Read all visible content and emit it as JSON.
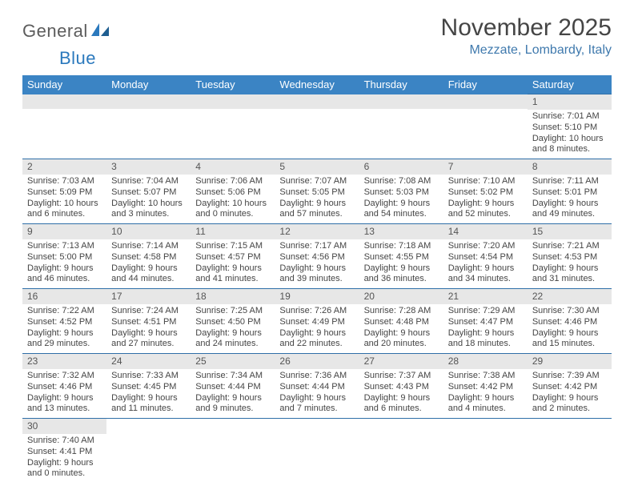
{
  "logo": {
    "text1": "General",
    "text2": "Blue"
  },
  "title": "November 2025",
  "location": "Mezzate, Lombardy, Italy",
  "colors": {
    "header_bg": "#3b84c4",
    "header_text": "#ffffff",
    "daynum_bg": "#e7e7e7",
    "rule": "#2f6fa8",
    "location_text": "#3f79ad",
    "body_text": "#454545"
  },
  "weekdays": [
    "Sunday",
    "Monday",
    "Tuesday",
    "Wednesday",
    "Thursday",
    "Friday",
    "Saturday"
  ],
  "weeks": [
    [
      null,
      null,
      null,
      null,
      null,
      null,
      {
        "n": "1",
        "sunrise": "Sunrise: 7:01 AM",
        "sunset": "Sunset: 5:10 PM",
        "day": "Daylight: 10 hours and 8 minutes."
      }
    ],
    [
      {
        "n": "2",
        "sunrise": "Sunrise: 7:03 AM",
        "sunset": "Sunset: 5:09 PM",
        "day": "Daylight: 10 hours and 6 minutes."
      },
      {
        "n": "3",
        "sunrise": "Sunrise: 7:04 AM",
        "sunset": "Sunset: 5:07 PM",
        "day": "Daylight: 10 hours and 3 minutes."
      },
      {
        "n": "4",
        "sunrise": "Sunrise: 7:06 AM",
        "sunset": "Sunset: 5:06 PM",
        "day": "Daylight: 10 hours and 0 minutes."
      },
      {
        "n": "5",
        "sunrise": "Sunrise: 7:07 AM",
        "sunset": "Sunset: 5:05 PM",
        "day": "Daylight: 9 hours and 57 minutes."
      },
      {
        "n": "6",
        "sunrise": "Sunrise: 7:08 AM",
        "sunset": "Sunset: 5:03 PM",
        "day": "Daylight: 9 hours and 54 minutes."
      },
      {
        "n": "7",
        "sunrise": "Sunrise: 7:10 AM",
        "sunset": "Sunset: 5:02 PM",
        "day": "Daylight: 9 hours and 52 minutes."
      },
      {
        "n": "8",
        "sunrise": "Sunrise: 7:11 AM",
        "sunset": "Sunset: 5:01 PM",
        "day": "Daylight: 9 hours and 49 minutes."
      }
    ],
    [
      {
        "n": "9",
        "sunrise": "Sunrise: 7:13 AM",
        "sunset": "Sunset: 5:00 PM",
        "day": "Daylight: 9 hours and 46 minutes."
      },
      {
        "n": "10",
        "sunrise": "Sunrise: 7:14 AM",
        "sunset": "Sunset: 4:58 PM",
        "day": "Daylight: 9 hours and 44 minutes."
      },
      {
        "n": "11",
        "sunrise": "Sunrise: 7:15 AM",
        "sunset": "Sunset: 4:57 PM",
        "day": "Daylight: 9 hours and 41 minutes."
      },
      {
        "n": "12",
        "sunrise": "Sunrise: 7:17 AM",
        "sunset": "Sunset: 4:56 PM",
        "day": "Daylight: 9 hours and 39 minutes."
      },
      {
        "n": "13",
        "sunrise": "Sunrise: 7:18 AM",
        "sunset": "Sunset: 4:55 PM",
        "day": "Daylight: 9 hours and 36 minutes."
      },
      {
        "n": "14",
        "sunrise": "Sunrise: 7:20 AM",
        "sunset": "Sunset: 4:54 PM",
        "day": "Daylight: 9 hours and 34 minutes."
      },
      {
        "n": "15",
        "sunrise": "Sunrise: 7:21 AM",
        "sunset": "Sunset: 4:53 PM",
        "day": "Daylight: 9 hours and 31 minutes."
      }
    ],
    [
      {
        "n": "16",
        "sunrise": "Sunrise: 7:22 AM",
        "sunset": "Sunset: 4:52 PM",
        "day": "Daylight: 9 hours and 29 minutes."
      },
      {
        "n": "17",
        "sunrise": "Sunrise: 7:24 AM",
        "sunset": "Sunset: 4:51 PM",
        "day": "Daylight: 9 hours and 27 minutes."
      },
      {
        "n": "18",
        "sunrise": "Sunrise: 7:25 AM",
        "sunset": "Sunset: 4:50 PM",
        "day": "Daylight: 9 hours and 24 minutes."
      },
      {
        "n": "19",
        "sunrise": "Sunrise: 7:26 AM",
        "sunset": "Sunset: 4:49 PM",
        "day": "Daylight: 9 hours and 22 minutes."
      },
      {
        "n": "20",
        "sunrise": "Sunrise: 7:28 AM",
        "sunset": "Sunset: 4:48 PM",
        "day": "Daylight: 9 hours and 20 minutes."
      },
      {
        "n": "21",
        "sunrise": "Sunrise: 7:29 AM",
        "sunset": "Sunset: 4:47 PM",
        "day": "Daylight: 9 hours and 18 minutes."
      },
      {
        "n": "22",
        "sunrise": "Sunrise: 7:30 AM",
        "sunset": "Sunset: 4:46 PM",
        "day": "Daylight: 9 hours and 15 minutes."
      }
    ],
    [
      {
        "n": "23",
        "sunrise": "Sunrise: 7:32 AM",
        "sunset": "Sunset: 4:46 PM",
        "day": "Daylight: 9 hours and 13 minutes."
      },
      {
        "n": "24",
        "sunrise": "Sunrise: 7:33 AM",
        "sunset": "Sunset: 4:45 PM",
        "day": "Daylight: 9 hours and 11 minutes."
      },
      {
        "n": "25",
        "sunrise": "Sunrise: 7:34 AM",
        "sunset": "Sunset: 4:44 PM",
        "day": "Daylight: 9 hours and 9 minutes."
      },
      {
        "n": "26",
        "sunrise": "Sunrise: 7:36 AM",
        "sunset": "Sunset: 4:44 PM",
        "day": "Daylight: 9 hours and 7 minutes."
      },
      {
        "n": "27",
        "sunrise": "Sunrise: 7:37 AM",
        "sunset": "Sunset: 4:43 PM",
        "day": "Daylight: 9 hours and 6 minutes."
      },
      {
        "n": "28",
        "sunrise": "Sunrise: 7:38 AM",
        "sunset": "Sunset: 4:42 PM",
        "day": "Daylight: 9 hours and 4 minutes."
      },
      {
        "n": "29",
        "sunrise": "Sunrise: 7:39 AM",
        "sunset": "Sunset: 4:42 PM",
        "day": "Daylight: 9 hours and 2 minutes."
      }
    ],
    [
      {
        "n": "30",
        "sunrise": "Sunrise: 7:40 AM",
        "sunset": "Sunset: 4:41 PM",
        "day": "Daylight: 9 hours and 0 minutes."
      },
      null,
      null,
      null,
      null,
      null,
      null
    ]
  ]
}
